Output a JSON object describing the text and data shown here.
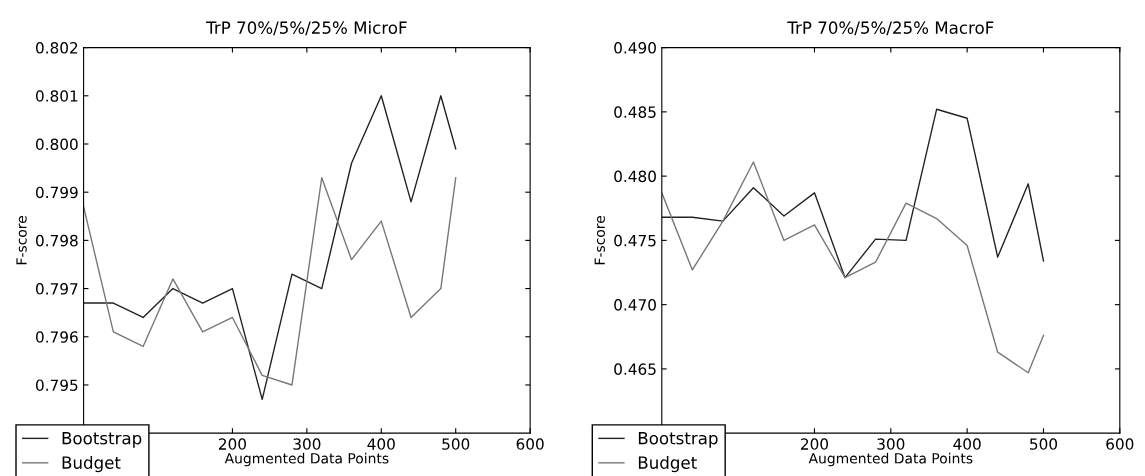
{
  "chart_data": [
    {
      "type": "line",
      "title": "TrP 70%/5%/25% MicroF",
      "xlabel": "Augmented Data Points",
      "ylabel": "F-score",
      "x": [
        0,
        40,
        80,
        120,
        160,
        200,
        240,
        280,
        320,
        360,
        400,
        440,
        480,
        500
      ],
      "series": [
        {
          "name": "Bootstrap",
          "color": "#222222",
          "values": [
            0.7967,
            0.7967,
            0.7964,
            0.797,
            0.7967,
            0.797,
            0.7947,
            0.7973,
            0.797,
            0.7996,
            0.801,
            0.7988,
            0.801,
            0.7999
          ]
        },
        {
          "name": "Budget",
          "color": "#777777",
          "values": [
            0.7987,
            0.7961,
            0.7958,
            0.7972,
            0.7961,
            0.7964,
            0.7952,
            0.795,
            0.7993,
            0.7976,
            0.7984,
            0.7964,
            0.797,
            0.7993
          ]
        }
      ],
      "xlim": [
        0,
        600
      ],
      "xticks": [
        200,
        300,
        400,
        500,
        600
      ],
      "ylim": [
        0.794,
        0.802
      ],
      "yticks": [
        0.795,
        0.796,
        0.797,
        0.798,
        0.799,
        {
          "value": 0.8,
          "label": "0.800"
        },
        0.801,
        0.802
      ],
      "legend": "bottom left",
      "grid": false
    },
    {
      "type": "line",
      "title": "TrP 70%/5%/25% MacroF",
      "xlabel": "Augmented Data Points",
      "ylabel": "F-score",
      "x": [
        0,
        40,
        80,
        120,
        160,
        200,
        240,
        280,
        320,
        360,
        400,
        440,
        480,
        500
      ],
      "series": [
        {
          "name": "Bootstrap",
          "color": "#222222",
          "values": [
            0.4768,
            0.4768,
            0.4765,
            0.4791,
            0.4769,
            0.4787,
            0.4721,
            0.4751,
            0.475,
            0.4852,
            0.4845,
            0.4737,
            0.4794,
            0.4734
          ]
        },
        {
          "name": "Budget",
          "color": "#777777",
          "values": [
            0.4787,
            0.4727,
            0.4765,
            0.4811,
            0.475,
            0.4762,
            0.4721,
            0.4733,
            0.4779,
            0.4767,
            0.4746,
            0.4663,
            0.4647,
            0.4676
          ]
        }
      ],
      "xlim": [
        0,
        600
      ],
      "xticks": [
        200,
        300,
        400,
        500,
        600
      ],
      "ylim": [
        0.46,
        0.49
      ],
      "yticks": [
        0.465,
        {
          "value": 0.47,
          "label": "0.470"
        },
        0.475,
        {
          "value": 0.48,
          "label": "0.480"
        },
        0.485,
        {
          "value": 0.49,
          "label": "0.490"
        }
      ],
      "legend": "bottom left",
      "grid": false
    }
  ]
}
